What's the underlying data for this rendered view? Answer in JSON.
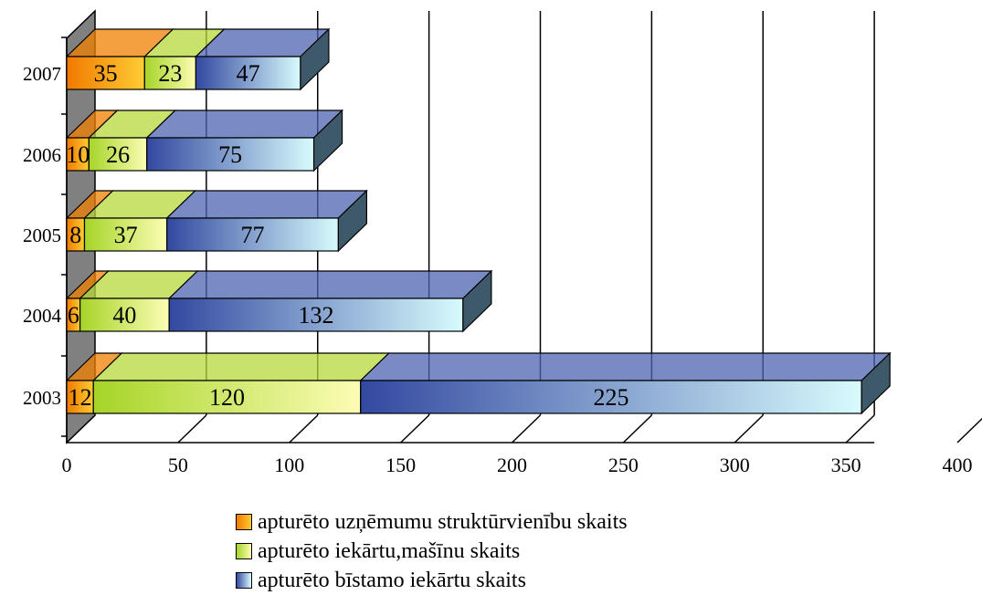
{
  "chart_data": {
    "type": "bar",
    "orientation": "horizontal",
    "stacked": true,
    "three_d": true,
    "categories": [
      "2003",
      "2004",
      "2005",
      "2006",
      "2007"
    ],
    "series": [
      {
        "name": "apturēto uzņēmumu struktūrvienību skaits",
        "values": [
          12,
          6,
          8,
          10,
          35
        ],
        "color": "#f08000"
      },
      {
        "name": "apturēto iekārtu,mašīnu skaits",
        "values": [
          120,
          40,
          37,
          26,
          23
        ],
        "color": "#b6d83a"
      },
      {
        "name": "apturēto bīstamo iekārtu skaits",
        "values": [
          225,
          132,
          77,
          75,
          47
        ],
        "color": "#4d63b0"
      }
    ],
    "xlim": [
      0,
      400
    ],
    "xticks": [
      "0",
      "50",
      "100",
      "150",
      "200",
      "250",
      "300",
      "350",
      "400"
    ],
    "grid": true,
    "legend_position": "bottom",
    "title": "",
    "xlabel": "",
    "ylabel": ""
  }
}
